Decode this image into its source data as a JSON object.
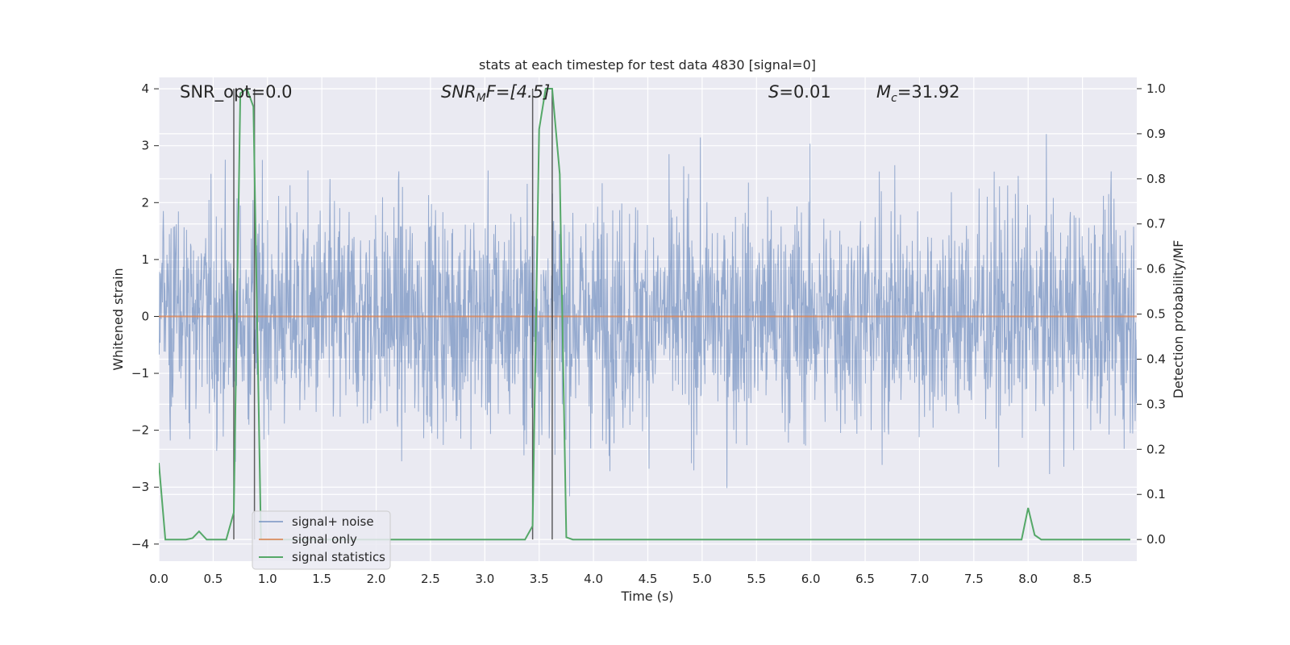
{
  "chart_data": {
    "type": "line",
    "title": "stats at each timestep for test data 4830 [signal=0]",
    "xlabel": "Time (s)",
    "ylabel_left": "Whitened strain",
    "ylabel_right": "Detection probability/MF",
    "xlim": [
      0.0,
      9.0
    ],
    "ylim_left": [
      -4.3,
      4.2
    ],
    "ylim_right": [
      -0.048,
      1.025
    ],
    "x_ticks": [
      "0.0",
      "0.5",
      "1.0",
      "1.5",
      "2.0",
      "2.5",
      "3.0",
      "3.5",
      "4.0",
      "4.5",
      "5.0",
      "5.5",
      "6.0",
      "6.5",
      "7.0",
      "7.5",
      "8.0",
      "8.5"
    ],
    "y_ticks_left": [
      "4",
      "3",
      "2",
      "1",
      "0",
      "−1",
      "−2",
      "−3",
      "−4"
    ],
    "y_ticks_right": [
      "1.0",
      "0.9",
      "0.8",
      "0.7",
      "0.6",
      "0.5",
      "0.4",
      "0.3",
      "0.2",
      "0.1",
      "0.0"
    ],
    "grid": true,
    "background": "#eaeaf2",
    "annotations": {
      "snr_opt": "SNR_opt=0.0",
      "snr_mf_sym": "SNR",
      "snr_mf_sub": "M",
      "snr_mf_rest": "F=[4.5]",
      "s_sym": "S",
      "s_val": "=0.01",
      "mc_sym": "M",
      "mc_sub": "c",
      "mc_val": "=31.92"
    },
    "vertical_markers_s": [
      0.69,
      0.88,
      3.44,
      3.62
    ],
    "legend": {
      "location": "lower-left",
      "entries": [
        {
          "label": "signal+ noise",
          "color": "#4c72b0"
        },
        {
          "label": "signal only",
          "color": "#dd8452"
        },
        {
          "label": "signal statistics",
          "color": "#55a868"
        }
      ]
    },
    "series": [
      {
        "name": "signal+ noise",
        "axis": "left",
        "color": "#4c72b0",
        "description_values": "noise band approx between -2.2 and 2.2, peaks up to 3.8 and down to -3.8",
        "values_summary": {
          "typical_min": -2.2,
          "typical_max": 2.2,
          "extreme_max": 3.85,
          "extreme_min": -3.8
        }
      },
      {
        "name": "signal only",
        "axis": "left",
        "color": "#dd8452",
        "x": [
          0.0,
          9.0
        ],
        "values": [
          0.0,
          0.0
        ]
      },
      {
        "name": "signal statistics",
        "axis": "right",
        "color": "#55a868",
        "x": [
          0.0,
          0.06,
          0.13,
          0.19,
          0.25,
          0.31,
          0.37,
          0.44,
          0.5,
          0.56,
          0.62,
          0.69,
          0.75,
          0.81,
          0.87,
          0.94,
          1.0,
          3.37,
          3.44,
          3.5,
          3.56,
          3.62,
          3.69,
          3.75,
          3.81,
          3.87,
          7.94,
          8.0,
          8.06,
          8.12,
          8.94
        ],
        "values": [
          0.17,
          0.0,
          0.0,
          0.0,
          0.0,
          0.003,
          0.018,
          0.0,
          0.0,
          0.0,
          0.0,
          0.06,
          0.99,
          1.0,
          0.96,
          0.0,
          0.0,
          0.0,
          0.03,
          0.91,
          1.0,
          1.0,
          0.81,
          0.005,
          0.0,
          0.0,
          0.0,
          0.07,
          0.01,
          0.0,
          0.0
        ]
      }
    ]
  }
}
